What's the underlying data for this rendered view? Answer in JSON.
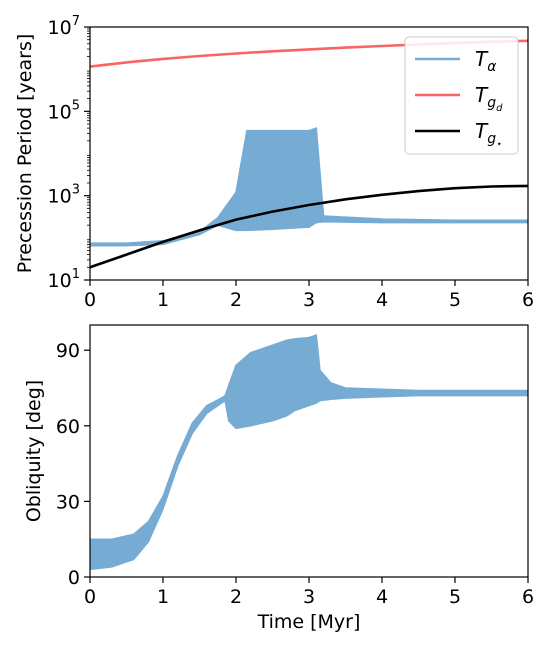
{
  "chart_data": [
    {
      "type": "line",
      "title": "",
      "xlabel": "",
      "ylabel": "Precession Period [years]",
      "xlim": [
        0,
        6
      ],
      "ylim": [
        10,
        10000000
      ],
      "yscale": "log",
      "x_ticks": [
        "0",
        "1",
        "2",
        "3",
        "4",
        "5",
        "6"
      ],
      "y_ticks": [
        {
          "base": "10",
          "exp": "1",
          "value": 10
        },
        {
          "base": "10",
          "exp": "3",
          "value": 1000
        },
        {
          "base": "10",
          "exp": "5",
          "value": 100000
        },
        {
          "base": "10",
          "exp": "7",
          "value": 10000000
        }
      ],
      "grid": false,
      "legend_position": "top-right",
      "series": [
        {
          "id": "T_alpha",
          "legend_main": "T",
          "legend_sub": "α",
          "color": "#76acd3",
          "style": "filled oscillation band",
          "x": [
            0,
            0.5,
            1.0,
            1.5,
            1.75,
            2.0,
            2.15,
            2.5,
            3.0,
            3.1,
            3.2,
            4.0,
            5.0,
            6.0
          ],
          "y_low": [
            65,
            65,
            70,
            120,
            200,
            150,
            150,
            160,
            180,
            230,
            240,
            230,
            230,
            230
          ],
          "y_high": [
            75,
            75,
            85,
            140,
            300,
            1200,
            35000,
            35000,
            35000,
            40000,
            330,
            280,
            260,
            260
          ]
        },
        {
          "id": "T_gd",
          "legend_main": "T",
          "legend_sub": "g",
          "legend_subsub": "d",
          "color": "#f96464",
          "style": "line",
          "x": [
            0,
            0.5,
            1,
            1.5,
            2,
            2.5,
            3,
            3.5,
            4,
            4.5,
            5,
            5.5,
            6
          ],
          "y": [
            1150000,
            1450000,
            1750000,
            2050000,
            2350000,
            2650000,
            2950000,
            3250000,
            3550000,
            3850000,
            4150000,
            4450000,
            4700000
          ]
        },
        {
          "id": "T_gstar",
          "legend_main": "T",
          "legend_sub": "g",
          "legend_subsub": "⋆",
          "color": "#000000",
          "style": "line",
          "x": [
            0,
            0.5,
            1,
            1.5,
            2,
            2.5,
            3,
            3.5,
            4,
            4.5,
            5,
            5.5,
            6
          ],
          "y": [
            20,
            40,
            80,
            150,
            270,
            420,
            600,
            820,
            1050,
            1280,
            1500,
            1650,
            1700
          ]
        }
      ]
    },
    {
      "type": "line",
      "title": "",
      "xlabel": "Time [Myr]",
      "ylabel": "Obliquity [deg]",
      "xlim": [
        0,
        6
      ],
      "ylim": [
        0,
        100
      ],
      "x_ticks": [
        "0",
        "1",
        "2",
        "3",
        "4",
        "5",
        "6"
      ],
      "y_ticks": [
        "0",
        "30",
        "60",
        "90"
      ],
      "grid": false,
      "series": [
        {
          "id": "obliquity",
          "color": "#76acd3",
          "style": "filled oscillation band",
          "x": [
            0,
            0.3,
            0.6,
            0.8,
            1.0,
            1.2,
            1.4,
            1.6,
            1.8,
            1.85,
            1.9,
            2.0,
            2.2,
            2.5,
            2.7,
            2.8,
            3.0,
            3.1,
            3.15,
            3.3,
            3.5,
            4.0,
            4.5,
            5.0,
            6.0
          ],
          "y_low": [
            3,
            4,
            7,
            14,
            27,
            44,
            57,
            65,
            69,
            70,
            62,
            59,
            60,
            62,
            64,
            66,
            68,
            69,
            70,
            70.5,
            71,
            71.5,
            72,
            72,
            72
          ],
          "y_high": [
            15,
            15,
            17,
            22,
            32,
            48,
            61,
            68,
            71,
            72,
            76,
            84,
            89,
            92,
            94,
            94.5,
            95,
            96,
            82,
            77,
            75,
            74.5,
            74,
            74,
            74
          ]
        }
      ]
    }
  ]
}
